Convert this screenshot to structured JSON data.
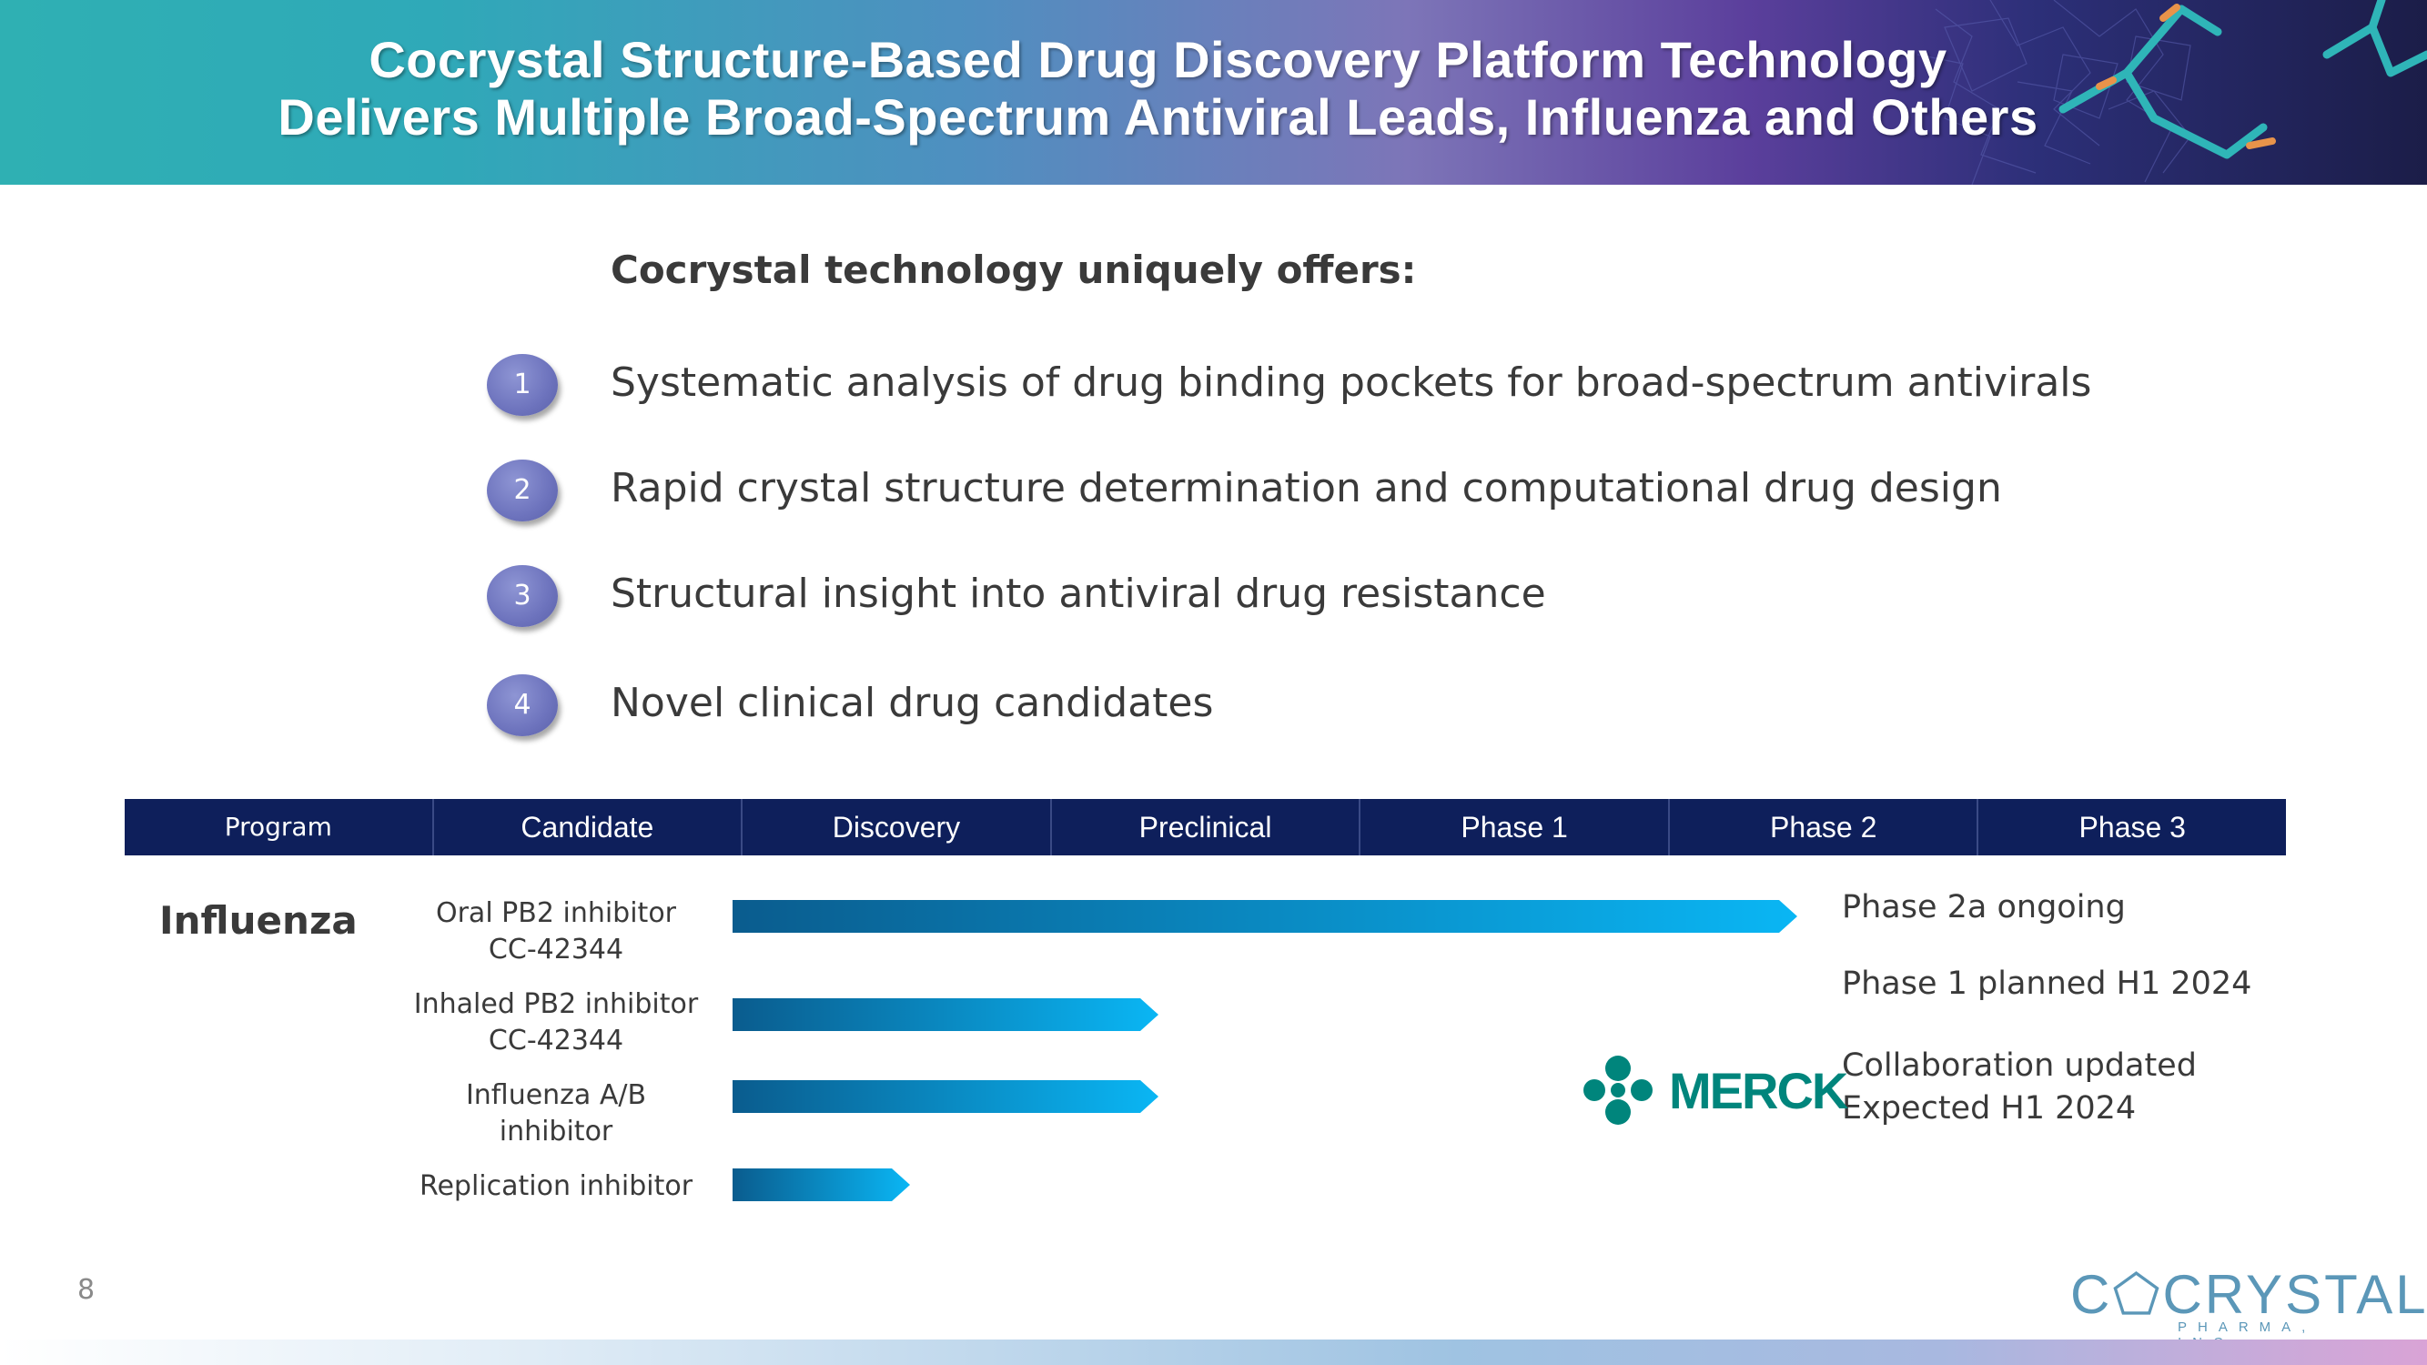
{
  "header": {
    "title_line1": "Cocrystal Structure-Based Drug Discovery Platform Technology",
    "title_line2": "Delivers Multiple Broad-Spectrum Antiviral Leads, Influenza and Others"
  },
  "offers": {
    "heading": "Cocrystal technology uniquely offers:",
    "items": [
      {
        "number": "1",
        "text": "Systematic analysis of drug binding pockets for broad-spectrum antivirals"
      },
      {
        "number": "2",
        "text": "Rapid crystal structure determination and computational drug design"
      },
      {
        "number": "3",
        "text": "Structural insight into antiviral drug resistance"
      },
      {
        "number": "4",
        "text": "Novel clinical drug candidates"
      }
    ]
  },
  "pipeline": {
    "columns": [
      "Program",
      "Candidate",
      "Discovery",
      "Preclinical",
      "Phase 1",
      "Phase 2",
      "Phase 3"
    ],
    "program": "Influenza",
    "rows": [
      {
        "candidate_line1": "Oral PB2 inhibitor",
        "candidate_line2": "CC-42344",
        "progress_stage": 4.5
      },
      {
        "candidate_line1": "Inhaled PB2 inhibitor",
        "candidate_line2": "CC-42344",
        "progress_stage": 1.8
      },
      {
        "candidate_line1": "Influenza A/B inhibitor",
        "candidate_line2": "",
        "progress_stage": 1.8
      },
      {
        "candidate_line1": "Replication inhibitor",
        "candidate_line2": "",
        "progress_stage": 0.75
      }
    ],
    "status": {
      "row1": "Phase 2a ongoing",
      "row2": "Phase 1 planned H1 2024",
      "row3_line1": "Collaboration updated",
      "row3_line2": "Expected H1 2024"
    },
    "partner_logo_text": "MERCK",
    "partner_color": "#00857c",
    "bar_colors": [
      "#0a5c8e",
      "#0ab6f4"
    ]
  },
  "footer": {
    "page_number": "8",
    "logo_text": "C⬠CRYSTAL",
    "logo_subtext": "PHARMA, INC."
  }
}
